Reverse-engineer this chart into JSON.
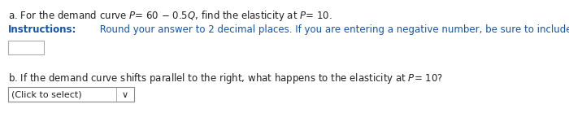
{
  "background_color": "#ffffff",
  "line_a": "a. For the demand curve  P = 60 − 0.5Q, find the elasticity at  P = 10.",
  "instructions_bold": "Instructions:",
  "instructions_rest": " Round your answer to 2 decimal places. If you are entering a negative number, be sure to include a negative sign (-).",
  "line_b": "b. If the demand curve shifts parallel to the right, what happens to the elasticity at P= 10?",
  "dropdown_label": "(Click to select)",
  "text_color": "#222222",
  "instructions_color": "#1155aa",
  "font_size": 8.5
}
